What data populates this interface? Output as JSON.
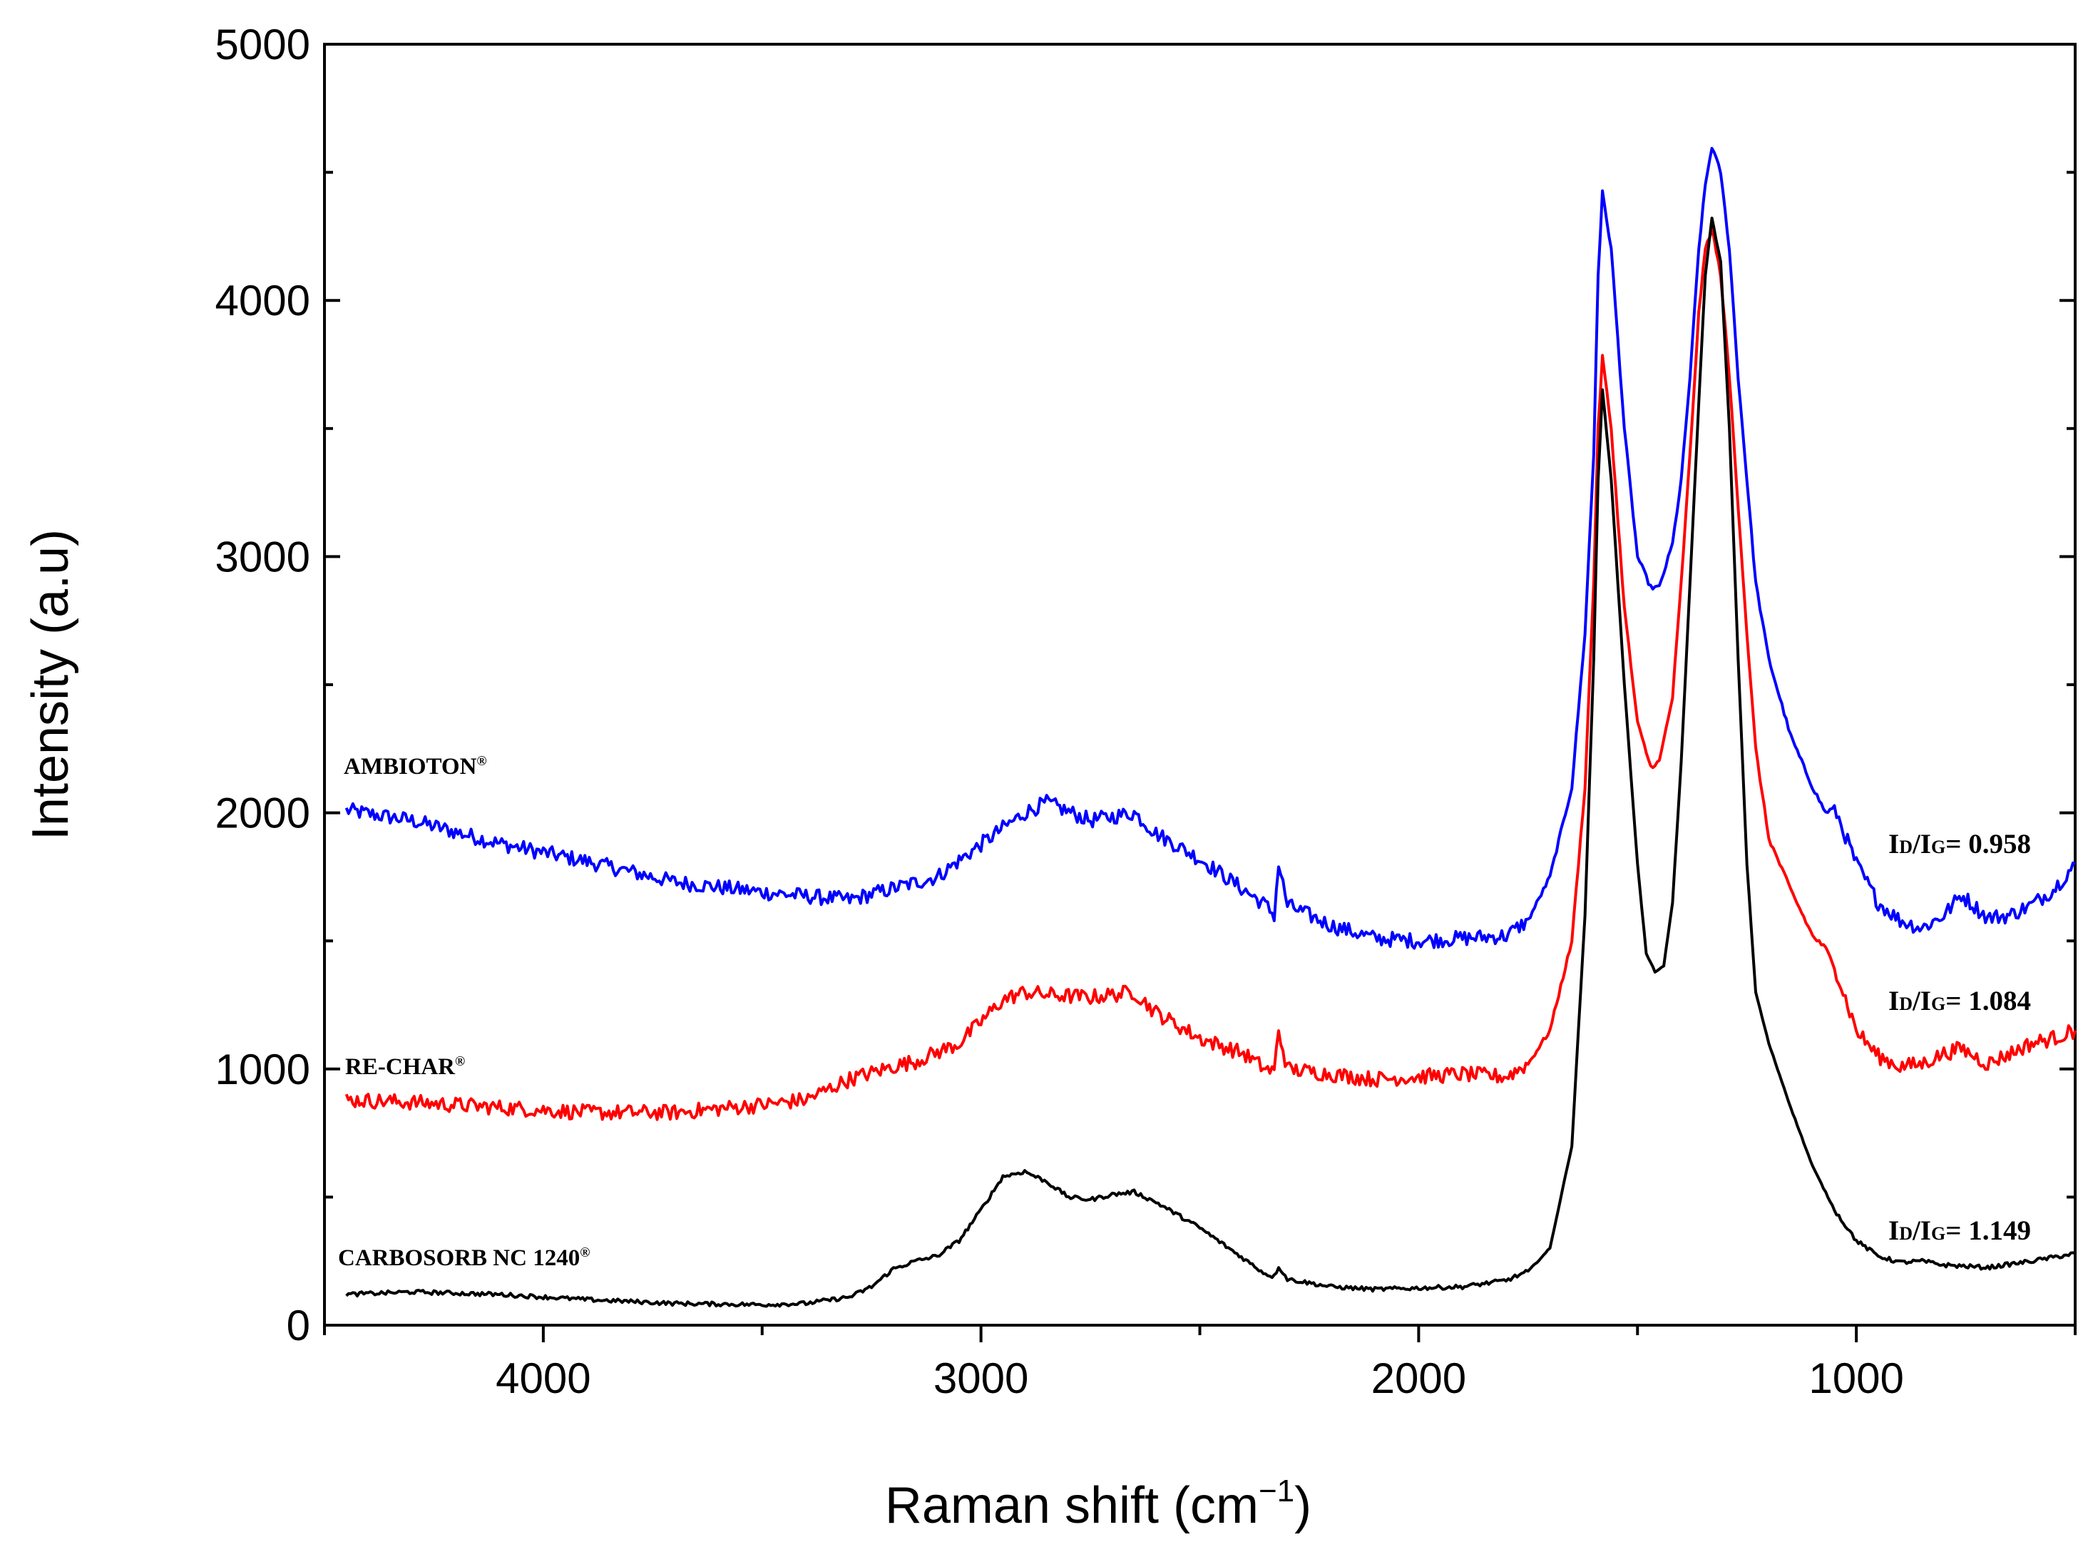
{
  "chart_data": {
    "type": "line",
    "title": "",
    "xlabel": "Raman shift (cm",
    "xlabel_exp": "−1",
    "xlabel_close": ")",
    "ylabel": "Intensity (a.u)",
    "xlim": [
      4500,
      500
    ],
    "ylim": [
      0,
      5000
    ],
    "x_ticks": [
      4000,
      3000,
      2000,
      1000
    ],
    "y_ticks": [
      0,
      1000,
      2000,
      3000,
      4000,
      5000
    ],
    "series": [
      {
        "name": "AMBIOTON",
        "mark": "®",
        "color": "#0000ff",
        "ratio_label": {
          "prefix": "I",
          "sub1": "D",
          "mid": "/I",
          "sub2": "G",
          "suffix": "= 0.958"
        },
        "x": [
          4450,
          4300,
          4100,
          3900,
          3700,
          3500,
          3300,
          3100,
          2950,
          2900,
          2850,
          2750,
          2650,
          2600,
          2500,
          2400,
          2350,
          2330,
          2320,
          2300,
          2200,
          2100,
          2000,
          1900,
          1800,
          1750,
          1700,
          1650,
          1620,
          1600,
          1590,
          1580,
          1560,
          1530,
          1500,
          1470,
          1450,
          1420,
          1400,
          1380,
          1360,
          1345,
          1330,
          1310,
          1290,
          1270,
          1250,
          1230,
          1200,
          1150,
          1100,
          1070,
          1050,
          1000,
          950,
          900,
          850,
          800,
          760,
          700,
          650,
          600,
          550,
          500
        ],
        "y": [
          2010,
          1970,
          1880,
          1810,
          1730,
          1690,
          1660,
          1750,
          1940,
          2000,
          2040,
          1970,
          2000,
          1920,
          1820,
          1700,
          1640,
          1600,
          1800,
          1640,
          1560,
          1510,
          1500,
          1510,
          1520,
          1580,
          1750,
          2100,
          2700,
          3400,
          4100,
          4420,
          4200,
          3500,
          3000,
          2880,
          2880,
          3050,
          3300,
          3700,
          4200,
          4450,
          4600,
          4500,
          4200,
          3700,
          3300,
          2900,
          2600,
          2300,
          2100,
          2000,
          2020,
          1800,
          1650,
          1580,
          1550,
          1600,
          1680,
          1590,
          1600,
          1640,
          1700,
          1800
        ]
      },
      {
        "name": "RE-CHAR",
        "mark": "®",
        "color": "#ff0000",
        "ratio_label": {
          "prefix": "I",
          "sub1": "D",
          "mid": "/I",
          "sub2": "G",
          "suffix": "= 1.084"
        },
        "x": [
          4450,
          4300,
          4100,
          3900,
          3700,
          3500,
          3400,
          3300,
          3200,
          3150,
          3050,
          2950,
          2900,
          2850,
          2750,
          2650,
          2600,
          2500,
          2400,
          2350,
          2330,
          2320,
          2300,
          2200,
          2100,
          2000,
          1900,
          1800,
          1750,
          1700,
          1650,
          1620,
          1600,
          1590,
          1580,
          1560,
          1530,
          1500,
          1470,
          1450,
          1420,
          1400,
          1380,
          1360,
          1345,
          1330,
          1310,
          1290,
          1270,
          1250,
          1230,
          1200,
          1150,
          1100,
          1070,
          1050,
          1000,
          950,
          900,
          850,
          800,
          760,
          700,
          650,
          600,
          550,
          500
        ],
        "y": [
          880,
          870,
          850,
          830,
          830,
          860,
          880,
          960,
          1010,
          1030,
          1100,
          1270,
          1300,
          1290,
          1280,
          1300,
          1220,
          1120,
          1060,
          1000,
          990,
          1150,
          1000,
          980,
          960,
          970,
          980,
          970,
          1020,
          1150,
          1500,
          2100,
          2900,
          3500,
          3780,
          3500,
          2800,
          2350,
          2180,
          2200,
          2450,
          2900,
          3400,
          3950,
          4200,
          4280,
          4100,
          3700,
          3200,
          2700,
          2250,
          1900,
          1700,
          1520,
          1470,
          1400,
          1150,
          1050,
          1010,
          1020,
          1060,
          1080,
          1020,
          1060,
          1100,
          1120,
          1150
        ]
      },
      {
        "name": "CARBOSORB NC 1240",
        "mark": "®",
        "color": "#000000",
        "ratio_label": {
          "prefix": "I",
          "sub1": "D",
          "mid": "/I",
          "sub2": "G",
          "suffix": "= 1.149"
        },
        "x": [
          4450,
          4300,
          4100,
          3900,
          3700,
          3500,
          3400,
          3300,
          3250,
          3200,
          3150,
          3100,
          3050,
          3000,
          2950,
          2900,
          2850,
          2800,
          2750,
          2700,
          2650,
          2600,
          2500,
          2400,
          2350,
          2330,
          2320,
          2300,
          2200,
          2100,
          2000,
          1900,
          1800,
          1750,
          1700,
          1650,
          1620,
          1600,
          1590,
          1580,
          1560,
          1530,
          1500,
          1480,
          1460,
          1440,
          1420,
          1400,
          1380,
          1360,
          1345,
          1330,
          1310,
          1290,
          1270,
          1250,
          1230,
          1200,
          1150,
          1100,
          1050,
          1000,
          950,
          900,
          850,
          800,
          700,
          600,
          500
        ],
        "y": [
          120,
          130,
          120,
          100,
          85,
          80,
          85,
          110,
          150,
          220,
          250,
          270,
          330,
          450,
          580,
          600,
          560,
          500,
          490,
          510,
          520,
          480,
          380,
          260,
          200,
          190,
          230,
          180,
          150,
          140,
          145,
          150,
          175,
          210,
          300,
          700,
          1600,
          2600,
          3300,
          3650,
          3300,
          2500,
          1800,
          1450,
          1380,
          1400,
          1650,
          2200,
          2900,
          3600,
          4100,
          4320,
          4150,
          3500,
          2600,
          1800,
          1300,
          1100,
          850,
          620,
          450,
          330,
          270,
          245,
          250,
          235,
          225,
          250,
          280
        ]
      }
    ]
  }
}
